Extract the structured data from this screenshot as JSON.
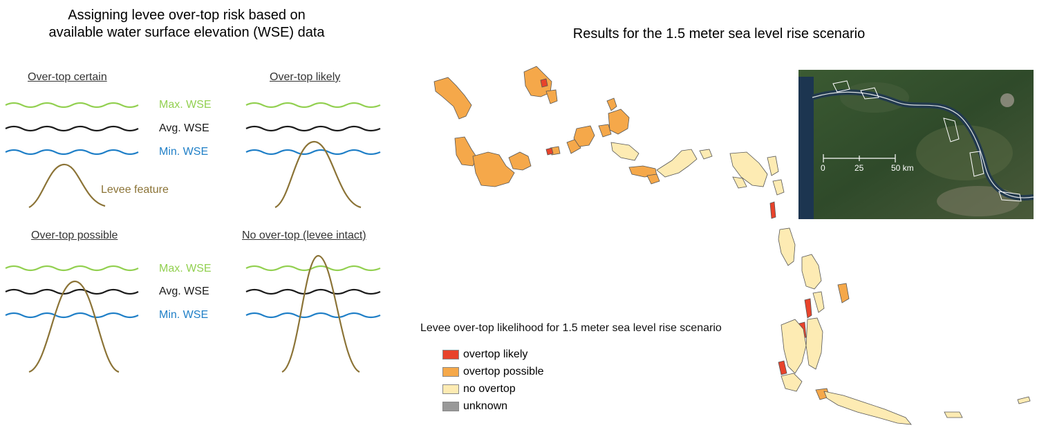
{
  "left": {
    "title_line1": "Assigning levee over-top risk based on",
    "title_line2": "available water surface elevation (WSE) data",
    "panels": [
      {
        "heading": "Over-top certain"
      },
      {
        "heading": "Over-top likely"
      },
      {
        "heading": "Over-top possible"
      },
      {
        "heading": "No over-top (levee intact)"
      }
    ],
    "labels": {
      "max": "Max. WSE",
      "avg": "Avg. WSE",
      "min": "Min. WSE",
      "levee": "Levee feature"
    },
    "colors": {
      "max": "#92d050",
      "avg": "#1a1a1a",
      "min": "#1f7fc7",
      "levee": "#8b7336"
    }
  },
  "right": {
    "title": "Results for the 1.5 meter sea level rise scenario",
    "legend": {
      "title": "Levee over-top likelihood for 1.5 meter sea level rise scenario",
      "items": [
        {
          "label": "overtop likely",
          "color": "#e8432b"
        },
        {
          "label": "overtop possible",
          "color": "#f5a84a"
        },
        {
          "label": "no overtop",
          "color": "#fdebb3"
        },
        {
          "label": "unknown",
          "color": "#999999"
        }
      ]
    },
    "inset": {
      "scale_ticks": [
        "0",
        "25",
        "50 km"
      ]
    }
  }
}
